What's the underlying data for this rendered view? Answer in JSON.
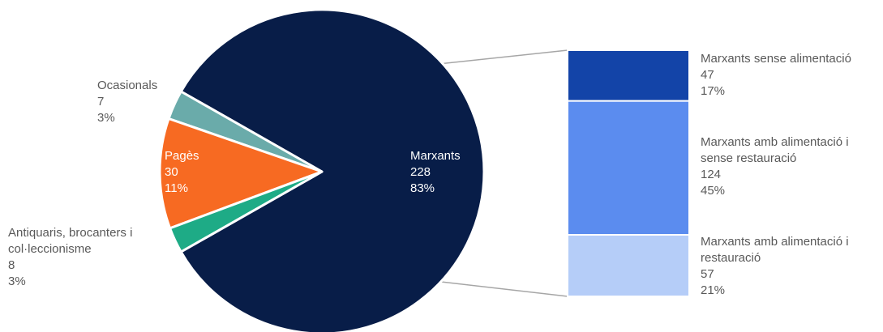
{
  "chart_data": {
    "type": "bar-of-pie",
    "pie": {
      "slices": [
        {
          "name": "Marxants",
          "value": 228,
          "percent": "83%",
          "color": "#081d48",
          "label_color": "#ffffff"
        },
        {
          "name": "Antiquaris, brocanters i col·leccionisme",
          "value": 8,
          "percent": "3%",
          "color": "#6aabaa",
          "label_color": "#595959"
        },
        {
          "name": "Pagès",
          "value": 30,
          "percent": "11%",
          "color": "#f76a22",
          "label_color": "#ffffff"
        },
        {
          "name": "Ocasionals",
          "value": 7,
          "percent": "3%",
          "color": "#1eab86",
          "label_color": "#595959"
        }
      ]
    },
    "bar": {
      "expands": "Marxants",
      "segments": [
        {
          "name": "Marxants sense alimentació",
          "value": 47,
          "percent": "17%",
          "color": "#1344a8"
        },
        {
          "name": "Marxants amb alimentació i sense restauració",
          "value": 124,
          "percent": "45%",
          "color": "#5b8cef"
        },
        {
          "name": "Marxants amb alimentació i restauració",
          "value": 57,
          "percent": "21%",
          "color": "#b5cdf8"
        }
      ]
    },
    "connector_color": "#a6a6a6",
    "text_color": "#595959"
  }
}
